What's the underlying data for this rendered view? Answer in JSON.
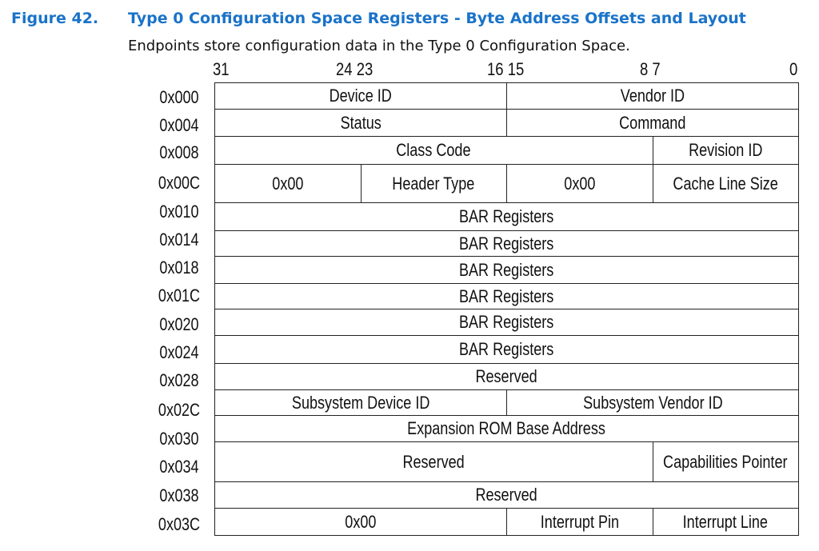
{
  "figure": {
    "number": "Figure 42.",
    "title": "Type 0 Configuration Space Registers - Byte Address Offsets and Layout",
    "description": "Endpoints store configuration data in the Type 0 Configuration Space."
  },
  "bit_labels": {
    "b31": "31",
    "b24_23": "24 23",
    "b16_15": "16 15",
    "b8_7": "8 7",
    "b0": "0"
  },
  "rows": [
    {
      "offset": "0x000",
      "cells": [
        "Device ID",
        "Vendor ID"
      ]
    },
    {
      "offset": "0x004",
      "cells": [
        "Status",
        "Command"
      ]
    },
    {
      "offset": "0x008",
      "cells": [
        "Class Code",
        "Revision ID"
      ]
    },
    {
      "offset": "0x00C",
      "cells": [
        "0x00",
        "Header Type",
        "0x00",
        "Cache Line Size"
      ]
    },
    {
      "offset": "0x010",
      "cells": [
        "BAR Registers"
      ]
    },
    {
      "offset": "0x014",
      "cells": [
        "BAR Registers"
      ]
    },
    {
      "offset": "0x018",
      "cells": [
        "BAR Registers"
      ]
    },
    {
      "offset": "0x01C",
      "cells": [
        "BAR Registers"
      ]
    },
    {
      "offset": "0x020",
      "cells": [
        "BAR Registers"
      ]
    },
    {
      "offset": "0x024",
      "cells": [
        "BAR Registers"
      ]
    },
    {
      "offset": "0x028",
      "cells": [
        "Reserved"
      ]
    },
    {
      "offset": "0x02C",
      "cells": [
        "Subsystem Device ID",
        "Subsystem Vendor ID"
      ]
    },
    {
      "offset": "0x030",
      "cells": [
        "Expansion ROM Base Address"
      ]
    },
    {
      "offset": "0x034",
      "cells": [
        "Reserved",
        "Capabilities Pointer"
      ]
    },
    {
      "offset": "0x038",
      "cells": [
        "Reserved"
      ]
    },
    {
      "offset": "0x03C",
      "cells": [
        "0x00",
        "Interrupt Pin",
        "Interrupt Line"
      ]
    }
  ],
  "colors": {
    "heading": "#1a73c8",
    "text": "#111111",
    "border": "#222222"
  }
}
